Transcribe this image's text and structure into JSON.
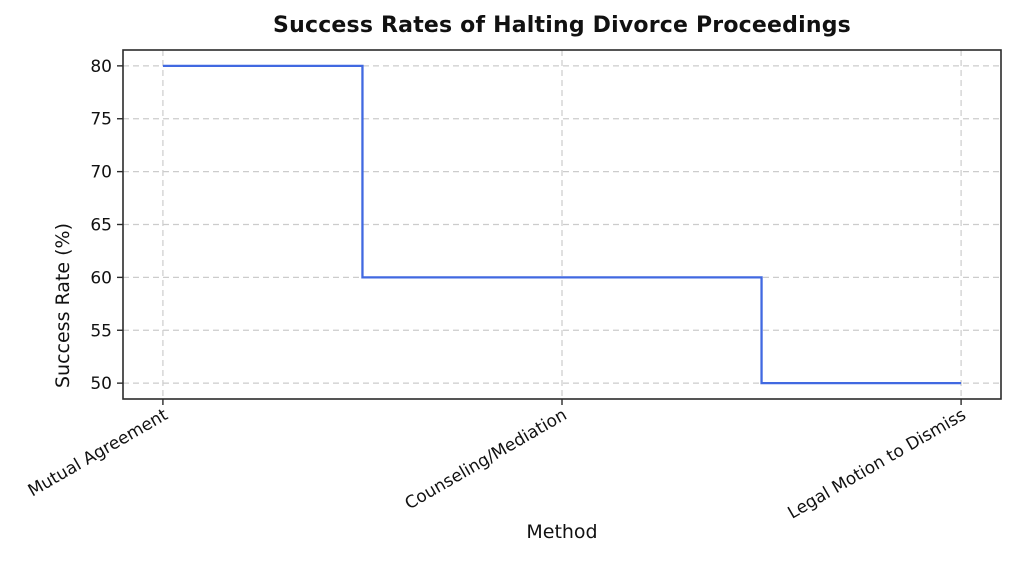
{
  "chart_data": {
    "type": "line",
    "drawstyle": "steps-mid",
    "title": "Success Rates of Halting Divorce Proceedings",
    "xlabel": "Method",
    "ylabel": "Success Rate (%)",
    "categories": [
      "Mutual Agreement",
      "Counseling/Mediation",
      "Legal Motion to Dismiss"
    ],
    "values": [
      80,
      60,
      50
    ],
    "ylim": [
      48.5,
      81.5
    ],
    "yticks": [
      50,
      55,
      60,
      65,
      70,
      75,
      80
    ],
    "x_tick_rotation_deg": 30,
    "grid": true,
    "grid_style": "dashed",
    "legend_position": "none",
    "colors": {
      "line": "#4169E1",
      "grid": "#cccccc",
      "axis": "#2b2b2b",
      "text": "#111111",
      "background": "#ffffff"
    }
  }
}
